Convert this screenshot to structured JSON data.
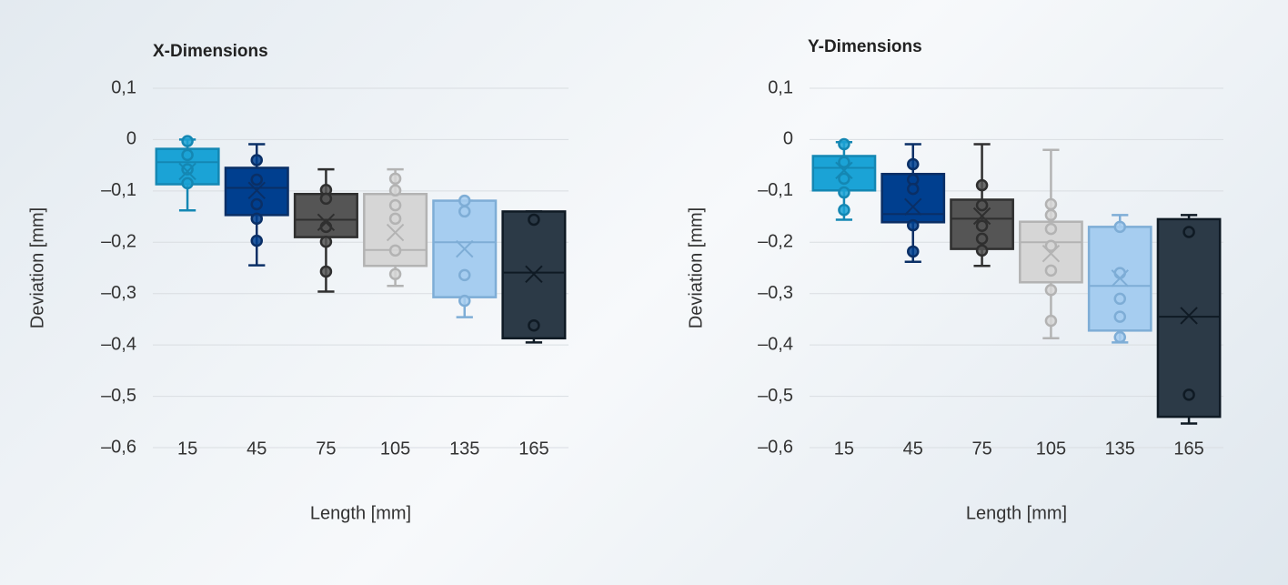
{
  "chart_data": [
    {
      "type": "box",
      "title": "X-Dimensions",
      "xlabel": "Length [mm]",
      "ylabel": "Deviation [mm]",
      "categories": [
        "15",
        "45",
        "75",
        "105",
        "135",
        "165"
      ],
      "colors": [
        "#1ba3d6",
        "#003f8f",
        "#555555",
        "#d6d6d6",
        "#a6cdf0",
        "#2c3a47"
      ],
      "edge_colors": [
        "#1487b3",
        "#0a2f66",
        "#2f2f2f",
        "#b3b3b3",
        "#7eadd6",
        "#0f1a24"
      ],
      "ylim": [
        -0.6,
        0.1
      ],
      "yticks": [
        {
          "value": 0.1,
          "label": "0,1"
        },
        0,
        {
          "value": -0.1,
          "label": "–0,1"
        },
        {
          "value": -0.2,
          "label": "–0,2"
        },
        {
          "value": -0.3,
          "label": "–0,3"
        },
        {
          "value": -0.4,
          "label": "–0,4"
        },
        {
          "value": -0.5,
          "label": "–0,5"
        },
        {
          "value": -0.6,
          "label": "–0,6"
        }
      ],
      "grid": true,
      "boxes": [
        {
          "min": -0.138,
          "q1": -0.087,
          "median": -0.044,
          "q3": -0.018,
          "max": 0,
          "mean": -0.062,
          "points": [
            -0.003,
            -0.03,
            -0.058,
            -0.085
          ]
        },
        {
          "min": -0.245,
          "q1": -0.147,
          "median": -0.094,
          "q3": -0.055,
          "max": -0.009,
          "mean": -0.099,
          "points": [
            -0.04,
            -0.078,
            -0.126,
            -0.154,
            -0.197
          ]
        },
        {
          "min": -0.296,
          "q1": -0.19,
          "median": -0.156,
          "q3": -0.106,
          "max": -0.058,
          "mean": -0.161,
          "points": [
            -0.098,
            -0.115,
            -0.17,
            -0.199,
            -0.257
          ]
        },
        {
          "min": -0.285,
          "q1": -0.246,
          "median": -0.215,
          "q3": -0.106,
          "max": -0.058,
          "mean": -0.181,
          "points": [
            -0.076,
            -0.099,
            -0.128,
            -0.154,
            -0.216,
            -0.262
          ]
        },
        {
          "min": -0.346,
          "q1": -0.307,
          "median": -0.2,
          "q3": -0.119,
          "max": -0.119,
          "mean": -0.213,
          "points": [
            -0.119,
            -0.14,
            -0.264,
            -0.314
          ]
        },
        {
          "min": -0.395,
          "q1": -0.387,
          "median": -0.259,
          "q3": -0.14,
          "max": -0.14,
          "mean": -0.262,
          "points": [
            -0.156,
            -0.362
          ]
        }
      ]
    },
    {
      "type": "box",
      "title": "Y-Dimensions",
      "xlabel": "Length [mm]",
      "ylabel": "Deviation [mm]",
      "categories": [
        "15",
        "45",
        "75",
        "105",
        "135",
        "165"
      ],
      "colors": [
        "#1ba3d6",
        "#003f8f",
        "#555555",
        "#d6d6d6",
        "#a6cdf0",
        "#2c3a47"
      ],
      "edge_colors": [
        "#1487b3",
        "#0a2f66",
        "#2f2f2f",
        "#b3b3b3",
        "#7eadd6",
        "#0f1a24"
      ],
      "ylim": [
        -0.6,
        0.1
      ],
      "yticks": [
        {
          "value": 0.1,
          "label": "0,1"
        },
        0,
        {
          "value": -0.1,
          "label": "–0,1"
        },
        {
          "value": -0.2,
          "label": "–0,2"
        },
        {
          "value": -0.3,
          "label": "–0,3"
        },
        {
          "value": -0.4,
          "label": "–0,4"
        },
        {
          "value": -0.5,
          "label": "–0,5"
        },
        {
          "value": -0.6,
          "label": "–0,6"
        }
      ],
      "grid": true,
      "boxes": [
        {
          "min": -0.156,
          "q1": -0.099,
          "median": -0.055,
          "q3": -0.032,
          "max": -0.005,
          "mean": -0.06,
          "points": [
            -0.009,
            -0.044,
            -0.076,
            -0.103,
            -0.137
          ]
        },
        {
          "min": -0.238,
          "q1": -0.161,
          "median": -0.145,
          "q3": -0.067,
          "max": -0.009,
          "mean": -0.131,
          "points": [
            -0.048,
            -0.078,
            -0.096,
            -0.167,
            -0.218
          ]
        },
        {
          "min": -0.246,
          "q1": -0.213,
          "median": -0.154,
          "q3": -0.117,
          "max": -0.009,
          "mean": -0.149,
          "points": [
            -0.089,
            -0.128,
            -0.168,
            -0.193,
            -0.216
          ]
        },
        {
          "min": -0.387,
          "q1": -0.278,
          "median": -0.2,
          "q3": -0.16,
          "max": -0.02,
          "mean": -0.222,
          "points": [
            -0.126,
            -0.147,
            -0.174,
            -0.207,
            -0.255,
            -0.293,
            -0.353
          ]
        },
        {
          "min": -0.395,
          "q1": -0.372,
          "median": -0.285,
          "q3": -0.17,
          "max": -0.147,
          "mean": -0.27,
          "points": [
            -0.17,
            -0.26,
            -0.31,
            -0.345,
            -0.385
          ]
        },
        {
          "min": -0.553,
          "q1": -0.54,
          "median": -0.345,
          "q3": -0.155,
          "max": -0.147,
          "mean": -0.343,
          "points": [
            -0.18,
            -0.497
          ]
        }
      ]
    }
  ]
}
